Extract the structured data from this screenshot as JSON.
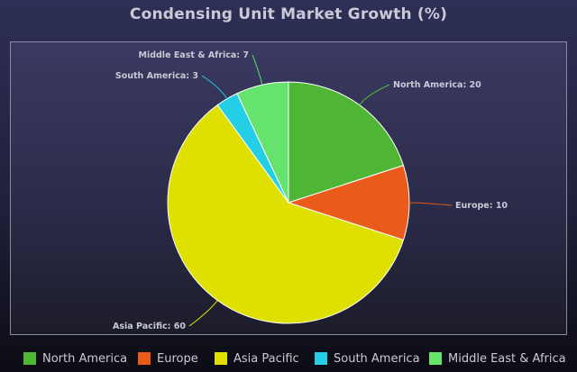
{
  "chart_data": {
    "type": "pie",
    "title": "Condensing Unit Market Growth (%)",
    "slices": [
      {
        "label": "North America",
        "value": 20,
        "color": "#4fb534"
      },
      {
        "label": "Europe",
        "value": 10,
        "color": "#ea5a1a"
      },
      {
        "label": "Asia Pacific",
        "value": 60,
        "color": "#dfe000"
      },
      {
        "label": "South America",
        "value": 3,
        "color": "#24cfe6"
      },
      {
        "label": "Middle East & Africa",
        "value": 7,
        "color": "#66e36d"
      }
    ],
    "data_labels": [
      "North America: 20",
      "Europe: 10",
      "Asia Pacific: 60",
      "South America: 3",
      "Middle East & Africa: 7"
    ],
    "legend": {
      "position": "bottom",
      "entries": [
        "North America",
        "Europe",
        "Asia Pacific",
        "South America",
        "Middle East & Africa"
      ]
    }
  }
}
